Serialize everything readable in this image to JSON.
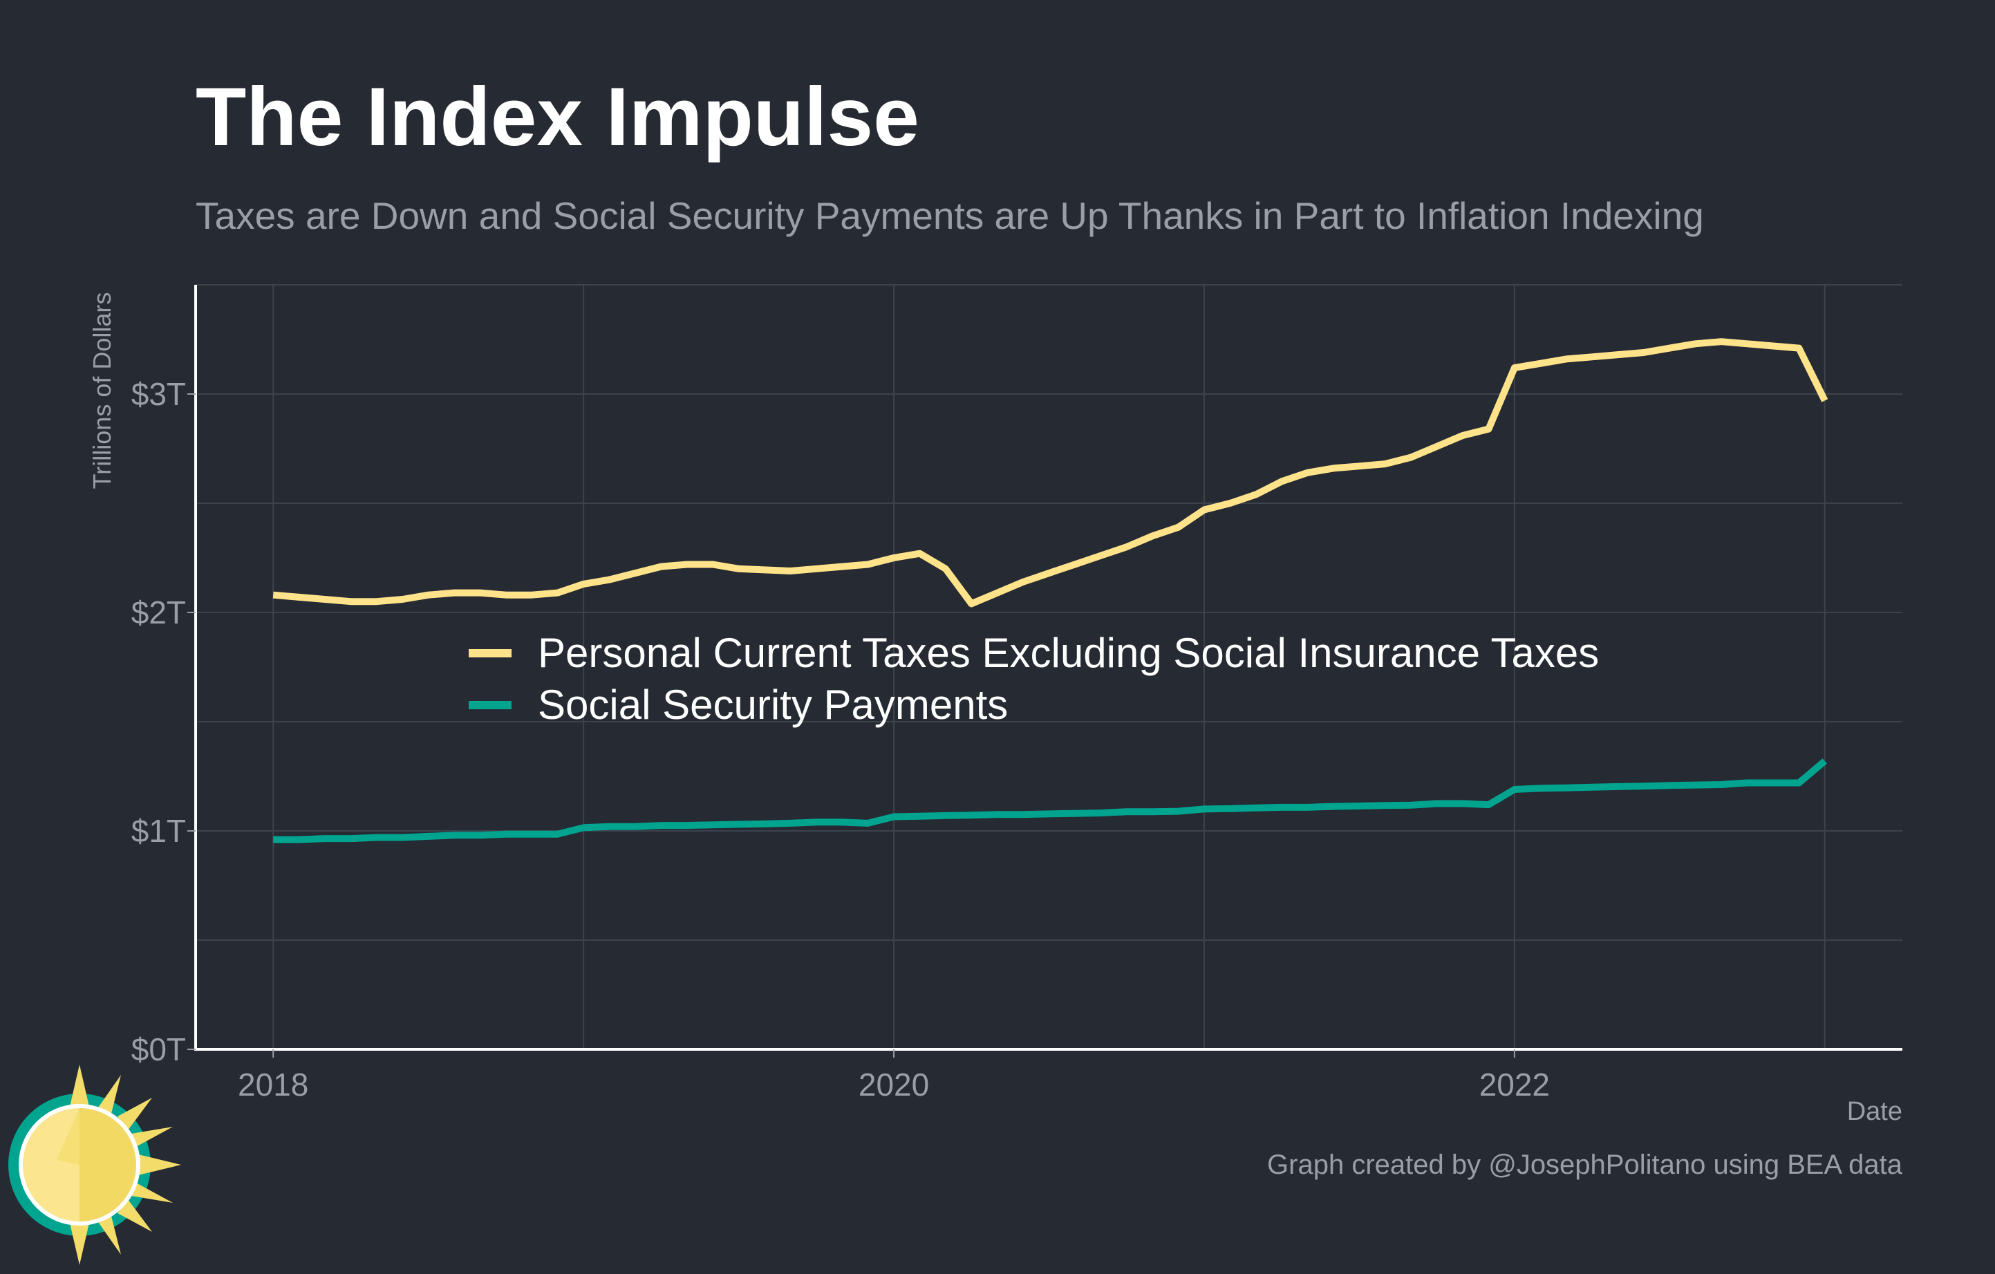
{
  "title": "The Index Impulse",
  "subtitle": "Taxes are Down and Social Security Payments are Up Thanks in Part to Inflation Indexing",
  "caption": "Graph created by @JosephPolitano using BEA data",
  "colors": {
    "background": "#252a33",
    "taxes": "#ffe38a",
    "social_security": "#00a48f",
    "grid": "#3d434d",
    "axis": "#ffffff",
    "muted_text": "#9a9ea6"
  },
  "chart_data": {
    "type": "line",
    "xlabel": "Date",
    "ylabel": "Trillions of Dollars",
    "x_ticks": [
      "2018",
      "2020",
      "2022"
    ],
    "y_ticks": [
      "$0T",
      "$1T",
      "$2T",
      "$3T"
    ],
    "ylim": [
      0,
      3.5
    ],
    "xlim": [
      "2017-10",
      "2023-04"
    ],
    "legend_position": "center",
    "grid": true,
    "x": [
      "2018-01",
      "2018-02",
      "2018-03",
      "2018-04",
      "2018-05",
      "2018-06",
      "2018-07",
      "2018-08",
      "2018-09",
      "2018-10",
      "2018-11",
      "2018-12",
      "2019-01",
      "2019-02",
      "2019-03",
      "2019-04",
      "2019-05",
      "2019-06",
      "2019-07",
      "2019-08",
      "2019-09",
      "2019-10",
      "2019-11",
      "2019-12",
      "2020-01",
      "2020-02",
      "2020-03",
      "2020-04",
      "2020-05",
      "2020-06",
      "2020-07",
      "2020-08",
      "2020-09",
      "2020-10",
      "2020-11",
      "2020-12",
      "2021-01",
      "2021-02",
      "2021-03",
      "2021-04",
      "2021-05",
      "2021-06",
      "2021-07",
      "2021-08",
      "2021-09",
      "2021-10",
      "2021-11",
      "2021-12",
      "2022-01",
      "2022-02",
      "2022-03",
      "2022-04",
      "2022-05",
      "2022-06",
      "2022-07",
      "2022-08",
      "2022-09",
      "2022-10",
      "2022-11",
      "2022-12",
      "2023-01"
    ],
    "series": [
      {
        "name": "Personal Current Taxes Excluding Social Insurance Taxes",
        "color": "#ffe38a",
        "values": [
          2.08,
          2.07,
          2.06,
          2.05,
          2.05,
          2.06,
          2.08,
          2.09,
          2.09,
          2.08,
          2.08,
          2.09,
          2.13,
          2.15,
          2.18,
          2.21,
          2.22,
          2.22,
          2.2,
          2.195,
          2.19,
          2.2,
          2.21,
          2.22,
          2.25,
          2.27,
          2.2,
          2.04,
          2.09,
          2.14,
          2.18,
          2.22,
          2.26,
          2.3,
          2.35,
          2.39,
          2.47,
          2.5,
          2.54,
          2.6,
          2.64,
          2.66,
          2.67,
          2.68,
          2.71,
          2.76,
          2.81,
          2.84,
          3.12,
          3.14,
          3.16,
          3.17,
          3.18,
          3.19,
          3.21,
          3.23,
          3.24,
          3.23,
          3.22,
          3.21,
          2.97
        ]
      },
      {
        "name": "Social Security Payments",
        "color": "#00a48f",
        "values": [
          0.96,
          0.96,
          0.965,
          0.965,
          0.97,
          0.97,
          0.975,
          0.98,
          0.98,
          0.985,
          0.985,
          0.985,
          1.015,
          1.02,
          1.02,
          1.025,
          1.025,
          1.028,
          1.03,
          1.032,
          1.035,
          1.04,
          1.04,
          1.035,
          1.065,
          1.067,
          1.07,
          1.072,
          1.075,
          1.075,
          1.078,
          1.08,
          1.082,
          1.088,
          1.088,
          1.09,
          1.1,
          1.102,
          1.105,
          1.108,
          1.108,
          1.112,
          1.114,
          1.116,
          1.118,
          1.125,
          1.125,
          1.12,
          1.19,
          1.195,
          1.197,
          1.2,
          1.203,
          1.205,
          1.208,
          1.21,
          1.212,
          1.22,
          1.22,
          1.22,
          1.32
        ]
      }
    ]
  },
  "logo": {
    "icon": "sun-logo-icon"
  }
}
